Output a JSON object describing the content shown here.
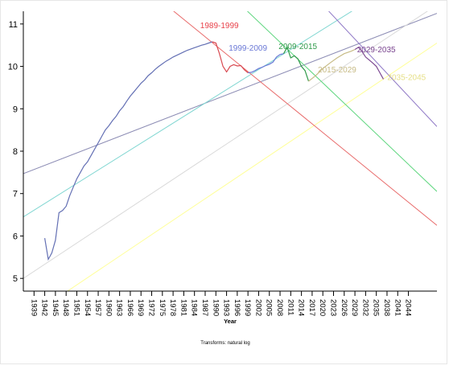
{
  "chart_data": {
    "type": "line",
    "xlabel": "Year",
    "ylabel": "",
    "transform_note": "Transforms: natural log",
    "xlim": [
      1936,
      2052
    ],
    "ylim": [
      4.7,
      11.3
    ],
    "x_ticks": [
      1939,
      1942,
      1945,
      1948,
      1951,
      1954,
      1957,
      1960,
      1963,
      1966,
      1969,
      1972,
      1975,
      1978,
      1981,
      1984,
      1987,
      1990,
      1993,
      1996,
      1999,
      2002,
      2005,
      2008,
      2011,
      2014,
      2017,
      2020,
      2023,
      2026,
      2029,
      2032,
      2035,
      2038,
      2041,
      2044
    ],
    "y_ticks": [
      5,
      6,
      7,
      8,
      9,
      10,
      11
    ],
    "series": [
      {
        "color": "#6470b4",
        "points": [
          [
            1942,
            5.95
          ],
          [
            1943,
            5.45
          ],
          [
            1944,
            5.6
          ],
          [
            1945,
            5.9
          ],
          [
            1946,
            6.55
          ],
          [
            1947,
            6.6
          ],
          [
            1948,
            6.7
          ],
          [
            1949,
            6.95
          ],
          [
            1950,
            7.15
          ],
          [
            1951,
            7.35
          ],
          [
            1952,
            7.5
          ],
          [
            1953,
            7.65
          ],
          [
            1954,
            7.75
          ],
          [
            1955,
            7.9
          ],
          [
            1956,
            8.05
          ],
          [
            1957,
            8.2
          ],
          [
            1958,
            8.35
          ],
          [
            1959,
            8.5
          ],
          [
            1960,
            8.6
          ],
          [
            1961,
            8.72
          ],
          [
            1962,
            8.82
          ],
          [
            1963,
            8.95
          ],
          [
            1964,
            9.05
          ],
          [
            1965,
            9.18
          ],
          [
            1966,
            9.3
          ],
          [
            1967,
            9.4
          ],
          [
            1968,
            9.5
          ],
          [
            1969,
            9.6
          ],
          [
            1970,
            9.68
          ],
          [
            1971,
            9.78
          ],
          [
            1972,
            9.85
          ],
          [
            1973,
            9.93
          ],
          [
            1974,
            10.0
          ],
          [
            1975,
            10.06
          ],
          [
            1976,
            10.12
          ],
          [
            1977,
            10.17
          ],
          [
            1978,
            10.22
          ],
          [
            1979,
            10.26
          ],
          [
            1980,
            10.3
          ],
          [
            1981,
            10.34
          ],
          [
            1982,
            10.38
          ],
          [
            1983,
            10.41
          ],
          [
            1984,
            10.44
          ],
          [
            1985,
            10.47
          ],
          [
            1986,
            10.5
          ],
          [
            1987,
            10.52
          ],
          [
            1988,
            10.55
          ],
          [
            1989,
            10.58
          ]
        ]
      },
      {
        "color": "#d94a52",
        "points": [
          [
            1989,
            10.58
          ],
          [
            1990,
            10.55
          ],
          [
            1991,
            10.3
          ],
          [
            1992,
            10.0
          ],
          [
            1993,
            9.87
          ],
          [
            1994,
            10.0
          ],
          [
            1995,
            10.04
          ],
          [
            1996,
            10.01
          ],
          [
            1997,
            10.02
          ],
          [
            1998,
            9.92
          ],
          [
            1999,
            9.85
          ]
        ]
      },
      {
        "color": "#6a78d6",
        "points": [
          [
            1999,
            9.85
          ],
          [
            2000,
            9.86
          ],
          [
            2001,
            9.9
          ],
          [
            2002,
            9.95
          ],
          [
            2003,
            9.98
          ],
          [
            2004,
            10.02
          ],
          [
            2005,
            10.05
          ],
          [
            2006,
            10.1
          ],
          [
            2007,
            10.22
          ],
          [
            2008,
            10.28
          ],
          [
            2009,
            10.3
          ]
        ]
      },
      {
        "color": "#2f9a4a",
        "points": [
          [
            2009,
            10.3
          ],
          [
            2010,
            10.45
          ],
          [
            2011,
            10.2
          ],
          [
            2012,
            10.25
          ],
          [
            2013,
            10.18
          ],
          [
            2014,
            10.0
          ],
          [
            2015,
            9.9
          ],
          [
            2016,
            9.65
          ]
        ]
      },
      {
        "color": "#c7bb86",
        "points": [
          [
            2016,
            9.65
          ],
          [
            2018,
            9.78
          ],
          [
            2020,
            9.95
          ],
          [
            2022,
            10.08
          ],
          [
            2024,
            10.2
          ],
          [
            2026,
            10.3
          ],
          [
            2028,
            10.36
          ],
          [
            2029,
            10.4
          ]
        ]
      },
      {
        "color": "#7b4690",
        "points": [
          [
            2029,
            10.4
          ],
          [
            2030,
            10.45
          ],
          [
            2031,
            10.35
          ],
          [
            2032,
            10.22
          ],
          [
            2033,
            10.15
          ],
          [
            2034,
            10.08
          ],
          [
            2035,
            10.0
          ],
          [
            2036,
            9.85
          ],
          [
            2037,
            9.7
          ]
        ]
      }
    ],
    "trend_lines": [
      {
        "color": "#8c8cb4",
        "from": [
          1936,
          7.47
        ],
        "to": [
          2052,
          11.25
        ]
      },
      {
        "color": "#7fd6d1",
        "from": [
          1936,
          6.45
        ],
        "to": [
          2030,
          11.4
        ]
      },
      {
        "color": "#d9d9d9",
        "from": [
          1936,
          5.0
        ],
        "to": [
          2052,
          11.45
        ]
      },
      {
        "color": "#ffff99",
        "from": [
          1936,
          4.0
        ],
        "to": [
          2052,
          10.55
        ]
      },
      {
        "color": "#e86a6a",
        "from": [
          1976,
          11.45
        ],
        "to": [
          2052,
          6.25
        ]
      },
      {
        "color": "#5ed67e",
        "from": [
          1997,
          11.45
        ],
        "to": [
          2052,
          7.05
        ]
      },
      {
        "color": "#8f78c6",
        "from": [
          2020,
          11.45
        ],
        "to": [
          2052,
          8.58
        ]
      }
    ],
    "segment_labels": [
      {
        "text": "1989-1999",
        "color": "#e8414a",
        "x": 1991,
        "y": 10.9
      },
      {
        "text": "1999-2009",
        "color": "#6a78d6",
        "x": 1999,
        "y": 10.37
      },
      {
        "text": "2009-2015",
        "color": "#2f9a4a",
        "x": 2013,
        "y": 10.41
      },
      {
        "text": "2015-2029",
        "color": "#c7bb86",
        "x": 2024,
        "y": 9.86
      },
      {
        "text": "2029-2035",
        "color": "#7b4690",
        "x": 2035,
        "y": 10.33
      },
      {
        "text": "2035-2045",
        "color": "#e6e089",
        "x": 2043.5,
        "y": 9.68
      }
    ]
  }
}
